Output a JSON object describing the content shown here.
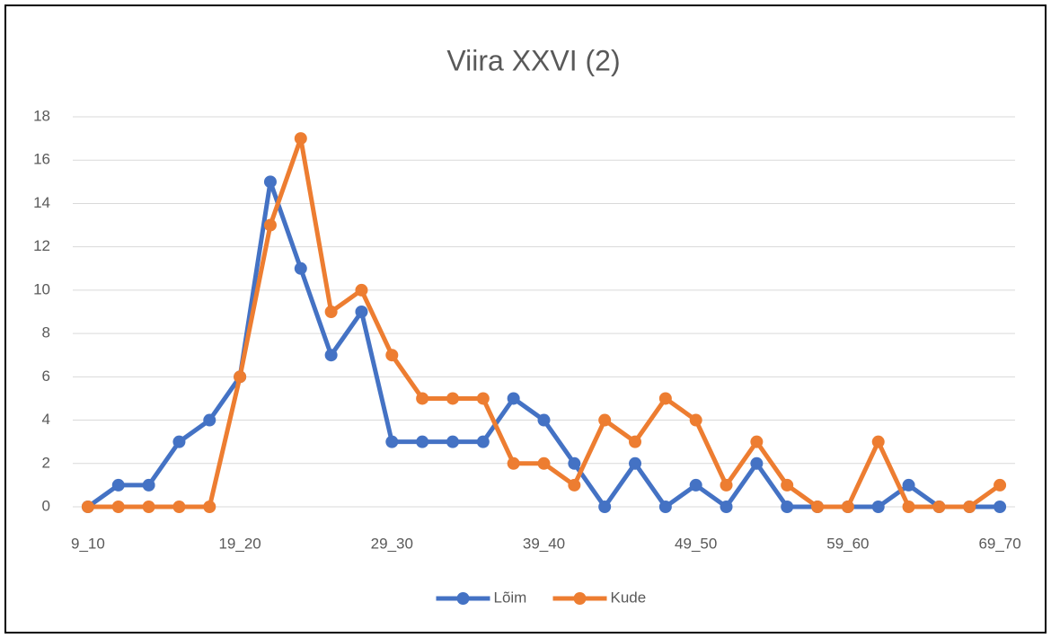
{
  "chart_data": {
    "type": "line",
    "title": "Viira XXVI (2)",
    "categories": [
      "9_10",
      null,
      null,
      null,
      null,
      "19_20",
      null,
      null,
      null,
      null,
      "29_30",
      null,
      null,
      null,
      null,
      "39_40",
      null,
      null,
      null,
      null,
      "49_50",
      null,
      null,
      null,
      null,
      "59_60",
      null,
      null,
      null,
      null,
      "69_70"
    ],
    "series": [
      {
        "name": "Lõim",
        "color": "#4472c4",
        "values": [
          0,
          1,
          1,
          3,
          4,
          6,
          15,
          11,
          7,
          9,
          3,
          3,
          3,
          3,
          5,
          4,
          2,
          0,
          2,
          0,
          1,
          0,
          2,
          0,
          0,
          0,
          0,
          1,
          0,
          0,
          0
        ]
      },
      {
        "name": "Kude",
        "color": "#ed7d31",
        "values": [
          0,
          0,
          0,
          0,
          0,
          6,
          13,
          17,
          9,
          10,
          7,
          5,
          5,
          5,
          2,
          2,
          1,
          4,
          3,
          5,
          4,
          1,
          3,
          1,
          0,
          0,
          3,
          0,
          0,
          0,
          1
        ]
      }
    ],
    "ylim": [
      0,
      18
    ],
    "yticks": [
      0,
      2,
      4,
      6,
      8,
      10,
      12,
      14,
      16,
      18
    ],
    "grid": true,
    "legend": "bottom"
  }
}
